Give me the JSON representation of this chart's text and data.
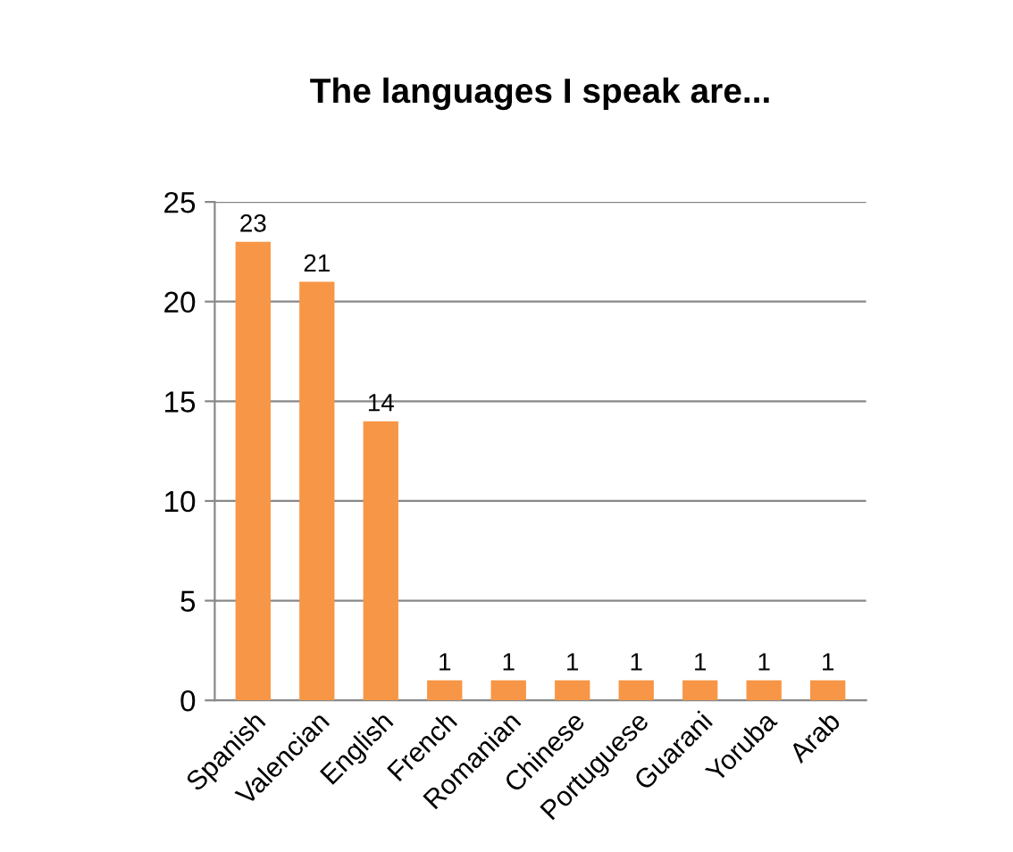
{
  "chart_data": {
    "type": "bar",
    "title": "The languages I speak are...",
    "categories": [
      "Spanish",
      "Valencian",
      "English",
      "French",
      "Romanian",
      "Chinese",
      "Portuguese",
      "Guarani",
      "Yoruba",
      "Arab"
    ],
    "values": [
      23,
      21,
      14,
      1,
      1,
      1,
      1,
      1,
      1,
      1
    ],
    "color": "#f79646",
    "ylim": [
      0,
      25
    ],
    "yticks": [
      0,
      5,
      10,
      15,
      20,
      25
    ],
    "grid": "y",
    "data_labels": true,
    "legend": false
  }
}
